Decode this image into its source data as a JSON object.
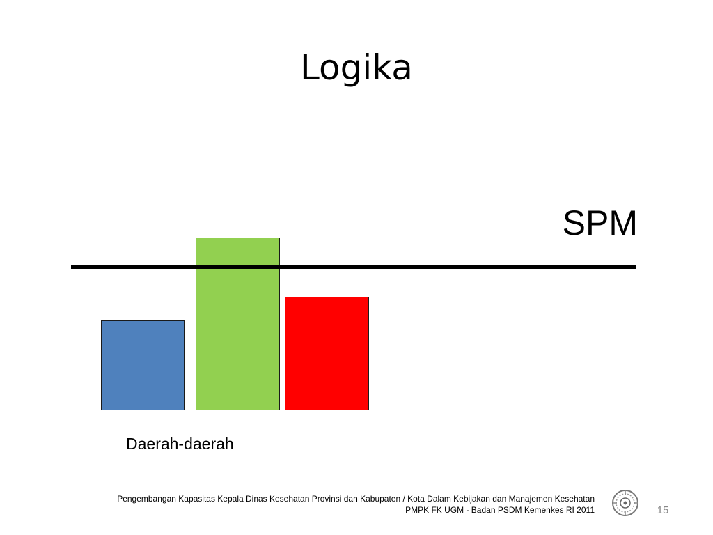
{
  "slide": {
    "title": "Logika",
    "threshold_label": "SPM",
    "group_label": "Daerah-daerah",
    "footer_line1": "Pengembangan Kapasitas Kepala Dinas Kesehatan Provinsi dan Kabupaten / Kota  Dalam Kebijakan dan Manajemen Kesehatan",
    "footer_line2": "PMPK FK UGM - Badan PSDM Kemenkes  RI 2011",
    "page_number": "15",
    "logo_icon": "university-seal-icon"
  },
  "bars": [
    {
      "color": "#4f81bd"
    },
    {
      "color": "#92d050"
    },
    {
      "color": "#ff0000"
    }
  ]
}
